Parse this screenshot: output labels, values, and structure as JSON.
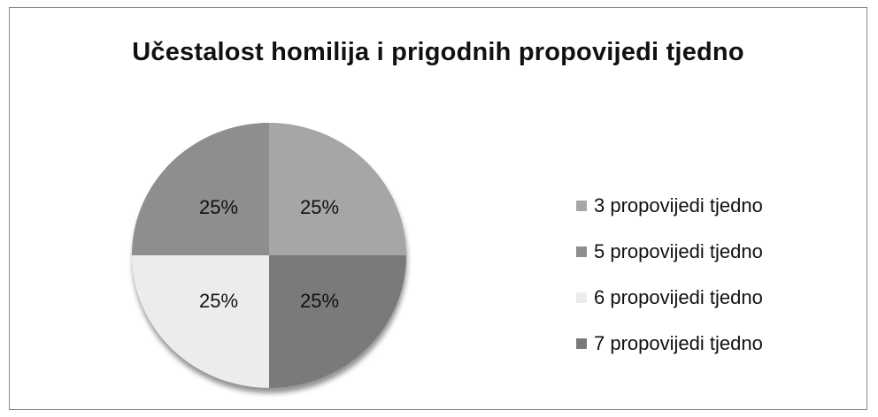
{
  "chart_data": {
    "type": "pie",
    "title": "Učestalost homilija i prigodnih propovijedi tjedno",
    "categories": [
      "3 propovijedi tjedno",
      "5 propovijedi tjedno",
      "6 propovijedi tjedno",
      "7 propovijedi tjedno"
    ],
    "values": [
      25,
      25,
      25,
      25
    ],
    "labels": [
      "25%",
      "25%",
      "25%",
      "25%"
    ],
    "colors": [
      "#a6a6a6",
      "#8e8e8e",
      "#ececec",
      "#7a7a7a"
    ],
    "legend_position": "right"
  }
}
